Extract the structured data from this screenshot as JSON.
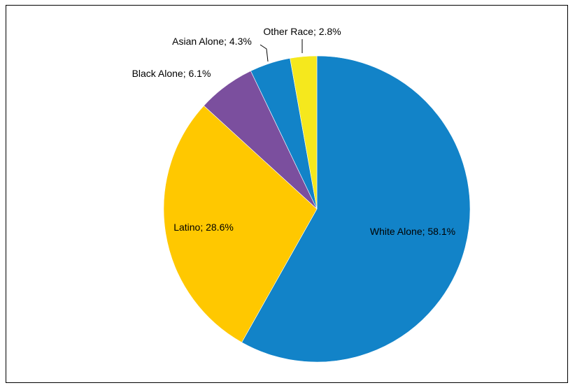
{
  "chart_data": {
    "type": "pie",
    "title": "",
    "slices": [
      {
        "label": "White Alone; 58.1%",
        "value": 58.1,
        "color": "#1283c8"
      },
      {
        "label": "Latino; 28.6%",
        "value": 28.6,
        "color": "#ffc800"
      },
      {
        "label": "Black  Alone; 6.1%",
        "value": 6.1,
        "color": "#7b4f9e"
      },
      {
        "label": "Asian Alone; 4.3%",
        "value": 4.3,
        "color": "#1283c8"
      },
      {
        "label": "Other Race; 2.8%",
        "value": 2.8,
        "color": "#f5e81d"
      }
    ],
    "start_angle_deg": 0,
    "direction": "clockwise",
    "legend": "none"
  }
}
